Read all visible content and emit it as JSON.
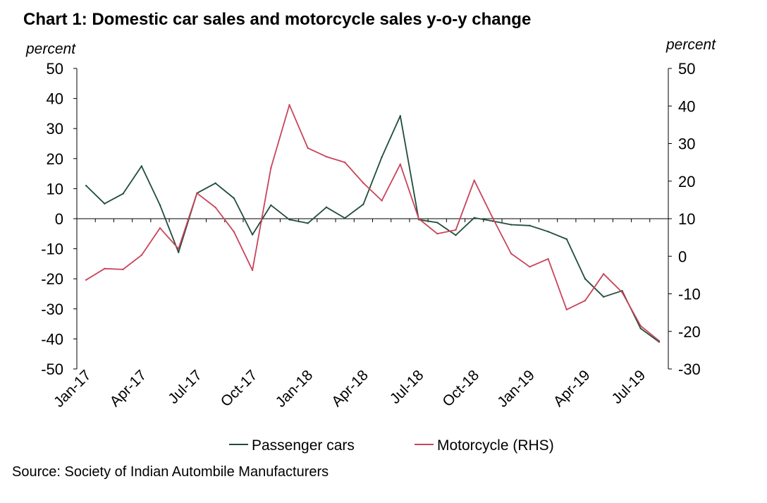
{
  "title": "Chart 1: Domestic car sales and motorcycle sales y-o-y change",
  "source": "Source: Society of Indian Autombile Manufacturers",
  "colors": {
    "passenger": "#1f4d3a",
    "motorcycle": "#c9445a",
    "axis": "#000000"
  },
  "chart_data": {
    "type": "line",
    "left_axis": {
      "label": "percent",
      "ylim": [
        -50,
        50
      ],
      "ticks": [
        50,
        40,
        30,
        20,
        10,
        0,
        -10,
        -20,
        -30,
        -40,
        -50
      ]
    },
    "right_axis": {
      "label": "percent",
      "ylim": [
        -30,
        50
      ],
      "ticks": [
        50,
        40,
        30,
        20,
        10,
        0,
        -10,
        -20,
        -30
      ]
    },
    "x": [
      "Jan-17",
      "Feb-17",
      "Mar-17",
      "Apr-17",
      "May-17",
      "Jun-17",
      "Jul-17",
      "Aug-17",
      "Sep-17",
      "Oct-17",
      "Nov-17",
      "Dec-17",
      "Jan-18",
      "Feb-18",
      "Mar-18",
      "Apr-18",
      "May-18",
      "Jun-18",
      "Jul-18",
      "Aug-18",
      "Sep-18",
      "Oct-18",
      "Nov-18",
      "Dec-18",
      "Jan-19",
      "Feb-19",
      "Mar-19",
      "Apr-19",
      "May-19",
      "Jun-19",
      "Jul-19",
      "Aug-19"
    ],
    "x_tick_labels": [
      "Jan-17",
      "Apr-17",
      "Jul-17",
      "Oct-17",
      "Jan-18",
      "Apr-18",
      "Jul-18",
      "Oct-18",
      "Jan-19",
      "Apr-19",
      "Jul-19"
    ],
    "x_tick_indices": [
      0,
      3,
      6,
      9,
      12,
      15,
      18,
      21,
      24,
      27,
      30
    ],
    "grid": false,
    "legend_position": "bottom",
    "series": [
      {
        "name": "Passenger cars",
        "axis": "left",
        "values": [
          11,
          5,
          8.3,
          17.5,
          4.5,
          -11.2,
          8.5,
          11.8,
          6.8,
          -5.3,
          4.5,
          -0.3,
          -1.5,
          3.8,
          0.2,
          4.8,
          20.5,
          34.2,
          -0.3,
          -1.3,
          -5.5,
          0.3,
          -0.8,
          -2.0,
          -2.3,
          -4.3,
          -6.8,
          -20.0,
          -26.0,
          -24.0,
          -36.5,
          -41.0
        ]
      },
      {
        "name": "Motorcycle (RHS)",
        "axis": "right",
        "values": [
          -6.3,
          -3.3,
          -3.5,
          0.3,
          7.5,
          2.0,
          16.8,
          13.0,
          6.5,
          -3.7,
          23.5,
          40.3,
          28.8,
          26.5,
          25.0,
          19.5,
          14.8,
          24.5,
          10.0,
          6.0,
          7.0,
          20.2,
          10.2,
          0.7,
          -2.8,
          -0.7,
          -14.2,
          -11.8,
          -4.7,
          -9.6,
          -18.5,
          -22.5
        ]
      }
    ]
  }
}
